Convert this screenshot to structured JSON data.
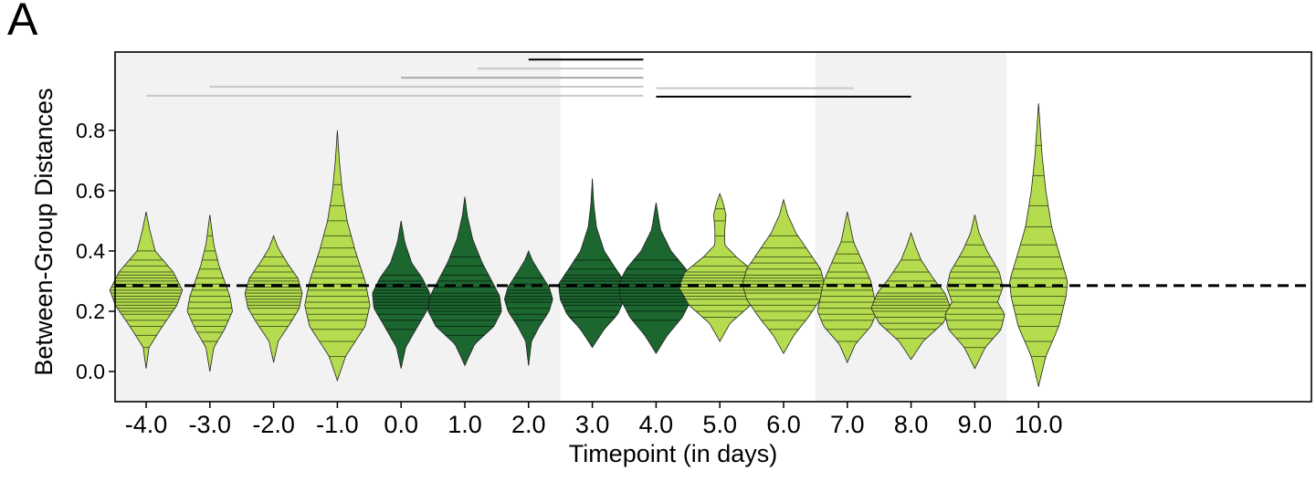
{
  "panel_label": "A",
  "chart_data": {
    "type": "violin",
    "xlabel": "Timepoint (in days)",
    "ylabel": "Between-Group Distances",
    "ylim": [
      -0.1,
      1.06
    ],
    "yticks": [
      0.0,
      0.2,
      0.4,
      0.6,
      0.8
    ],
    "ytick_labels": [
      "0.0",
      "0.2",
      "0.4",
      "0.6",
      "0.8"
    ],
    "categories": [
      "-4.0",
      "-3.0",
      "-2.0",
      "-1.0",
      "0.0",
      "1.0",
      "2.0",
      "3.0",
      "4.0",
      "5.0",
      "6.0",
      "7.0",
      "8.0",
      "9.0",
      "10.0"
    ],
    "reference_line": {
      "y": 0.285,
      "style": "dashed",
      "color": "#000000"
    },
    "shaded_bands": [
      {
        "from": "-4.0",
        "to": "2.0",
        "color": "#f2f2f2"
      },
      {
        "from": "7.0",
        "to": "9.0",
        "color": "#f2f2f2"
      }
    ],
    "colors": {
      "light": "#b5dc4f",
      "dark": "#1c6630"
    },
    "violins": [
      {
        "x": "-4.0",
        "color": "light",
        "min": 0.01,
        "max": 0.53,
        "width": 0.3,
        "profile": [
          [
            0.01,
            0.0
          ],
          [
            0.08,
            0.08
          ],
          [
            0.15,
            0.45
          ],
          [
            0.22,
            0.85
          ],
          [
            0.27,
            1.0
          ],
          [
            0.33,
            0.75
          ],
          [
            0.4,
            0.25
          ],
          [
            0.47,
            0.1
          ],
          [
            0.53,
            0.0
          ]
        ],
        "points": [
          0.08,
          0.12,
          0.15,
          0.17,
          0.19,
          0.2,
          0.21,
          0.22,
          0.23,
          0.24,
          0.25,
          0.26,
          0.27,
          0.28,
          0.29,
          0.3,
          0.31,
          0.32,
          0.33,
          0.35,
          0.37,
          0.4
        ]
      },
      {
        "x": "-3.0",
        "color": "light",
        "min": 0.0,
        "max": 0.52,
        "width": 0.22,
        "profile": [
          [
            0.0,
            0.0
          ],
          [
            0.08,
            0.15
          ],
          [
            0.14,
            0.55
          ],
          [
            0.2,
            0.85
          ],
          [
            0.25,
            0.75
          ],
          [
            0.3,
            0.55
          ],
          [
            0.35,
            0.35
          ],
          [
            0.42,
            0.15
          ],
          [
            0.52,
            0.0
          ]
        ],
        "points": [
          0.1,
          0.13,
          0.15,
          0.17,
          0.19,
          0.21,
          0.23,
          0.25,
          0.27,
          0.29,
          0.31,
          0.34,
          0.37,
          0.4,
          0.45
        ]
      },
      {
        "x": "-2.0",
        "color": "light",
        "min": 0.03,
        "max": 0.45,
        "width": 0.25,
        "profile": [
          [
            0.03,
            0.0
          ],
          [
            0.1,
            0.15
          ],
          [
            0.16,
            0.55
          ],
          [
            0.21,
            0.85
          ],
          [
            0.26,
            0.95
          ],
          [
            0.31,
            0.8
          ],
          [
            0.36,
            0.45
          ],
          [
            0.41,
            0.15
          ],
          [
            0.45,
            0.0
          ]
        ],
        "points": [
          0.15,
          0.17,
          0.19,
          0.21,
          0.22,
          0.23,
          0.24,
          0.25,
          0.26,
          0.27,
          0.28,
          0.29,
          0.3,
          0.31,
          0.33,
          0.35,
          0.38
        ]
      },
      {
        "x": "-1.0",
        "color": "light",
        "min": -0.03,
        "max": 0.8,
        "width": 0.27,
        "profile": [
          [
            -0.03,
            0.0
          ],
          [
            0.05,
            0.25
          ],
          [
            0.15,
            0.85
          ],
          [
            0.22,
            1.0
          ],
          [
            0.3,
            0.85
          ],
          [
            0.4,
            0.55
          ],
          [
            0.5,
            0.3
          ],
          [
            0.6,
            0.15
          ],
          [
            0.7,
            0.06
          ],
          [
            0.8,
            0.0
          ]
        ],
        "points": [
          0.05,
          0.1,
          0.14,
          0.17,
          0.19,
          0.21,
          0.23,
          0.25,
          0.27,
          0.29,
          0.31,
          0.33,
          0.35,
          0.38,
          0.41,
          0.45,
          0.5,
          0.55,
          0.62
        ]
      },
      {
        "x": "0.0",
        "color": "dark",
        "min": 0.01,
        "max": 0.5,
        "width": 0.25,
        "profile": [
          [
            0.01,
            0.0
          ],
          [
            0.08,
            0.15
          ],
          [
            0.15,
            0.55
          ],
          [
            0.21,
            0.9
          ],
          [
            0.26,
            0.95
          ],
          [
            0.31,
            0.7
          ],
          [
            0.36,
            0.35
          ],
          [
            0.43,
            0.12
          ],
          [
            0.5,
            0.0
          ]
        ],
        "points": [
          0.14,
          0.17,
          0.19,
          0.21,
          0.22,
          0.23,
          0.24,
          0.25,
          0.26,
          0.27,
          0.28,
          0.29,
          0.3,
          0.32
        ]
      },
      {
        "x": "1.0",
        "color": "dark",
        "min": 0.02,
        "max": 0.58,
        "width": 0.32,
        "profile": [
          [
            0.02,
            0.0
          ],
          [
            0.09,
            0.25
          ],
          [
            0.15,
            0.75
          ],
          [
            0.2,
            0.95
          ],
          [
            0.25,
            0.9
          ],
          [
            0.3,
            0.7
          ],
          [
            0.36,
            0.45
          ],
          [
            0.44,
            0.2
          ],
          [
            0.52,
            0.06
          ],
          [
            0.58,
            0.0
          ]
        ],
        "points": [
          0.12,
          0.15,
          0.17,
          0.19,
          0.2,
          0.21,
          0.22,
          0.23,
          0.24,
          0.25,
          0.26,
          0.28,
          0.3,
          0.32,
          0.35,
          0.38
        ]
      },
      {
        "x": "2.0",
        "color": "dark",
        "min": 0.02,
        "max": 0.4,
        "width": 0.2,
        "profile": [
          [
            0.02,
            0.0
          ],
          [
            0.1,
            0.12
          ],
          [
            0.15,
            0.45
          ],
          [
            0.2,
            0.85
          ],
          [
            0.24,
            1.0
          ],
          [
            0.28,
            0.85
          ],
          [
            0.33,
            0.45
          ],
          [
            0.37,
            0.15
          ],
          [
            0.4,
            0.0
          ]
        ],
        "points": [
          0.17,
          0.19,
          0.21,
          0.23,
          0.24,
          0.25,
          0.26,
          0.27,
          0.29,
          0.31
        ]
      },
      {
        "x": "3.0",
        "color": "dark",
        "min": 0.08,
        "max": 0.64,
        "width": 0.28,
        "profile": [
          [
            0.08,
            0.0
          ],
          [
            0.14,
            0.35
          ],
          [
            0.19,
            0.75
          ],
          [
            0.24,
            0.95
          ],
          [
            0.29,
            1.0
          ],
          [
            0.34,
            0.7
          ],
          [
            0.4,
            0.35
          ],
          [
            0.48,
            0.12
          ],
          [
            0.56,
            0.04
          ],
          [
            0.64,
            0.0
          ]
        ],
        "points": [
          0.18,
          0.2,
          0.22,
          0.23,
          0.24,
          0.25,
          0.26,
          0.27,
          0.28,
          0.29,
          0.3,
          0.31,
          0.32,
          0.34,
          0.37
        ]
      },
      {
        "x": "4.0",
        "color": "dark",
        "min": 0.06,
        "max": 0.56,
        "width": 0.31,
        "profile": [
          [
            0.06,
            0.0
          ],
          [
            0.12,
            0.3
          ],
          [
            0.18,
            0.7
          ],
          [
            0.24,
            0.95
          ],
          [
            0.29,
            1.0
          ],
          [
            0.34,
            0.8
          ],
          [
            0.4,
            0.4
          ],
          [
            0.47,
            0.12
          ],
          [
            0.56,
            0.0
          ]
        ],
        "points": [
          0.17,
          0.2,
          0.22,
          0.23,
          0.24,
          0.25,
          0.26,
          0.27,
          0.28,
          0.29,
          0.3,
          0.31,
          0.32,
          0.34,
          0.37
        ]
      },
      {
        "x": "5.0",
        "color": "light",
        "min": 0.1,
        "max": 0.59,
        "width": 0.34,
        "profile": [
          [
            0.1,
            0.0
          ],
          [
            0.16,
            0.25
          ],
          [
            0.22,
            0.75
          ],
          [
            0.28,
            1.0
          ],
          [
            0.33,
            0.85
          ],
          [
            0.38,
            0.4
          ],
          [
            0.42,
            0.12
          ],
          [
            0.47,
            0.12
          ],
          [
            0.52,
            0.15
          ],
          [
            0.56,
            0.08
          ],
          [
            0.59,
            0.0
          ]
        ],
        "points": [
          0.18,
          0.2,
          0.22,
          0.24,
          0.25,
          0.26,
          0.27,
          0.28,
          0.29,
          0.3,
          0.31,
          0.32,
          0.33,
          0.35,
          0.38,
          0.45,
          0.5,
          0.54
        ]
      },
      {
        "x": "6.0",
        "color": "light",
        "min": 0.06,
        "max": 0.57,
        "width": 0.34,
        "profile": [
          [
            0.06,
            0.0
          ],
          [
            0.12,
            0.25
          ],
          [
            0.18,
            0.6
          ],
          [
            0.24,
            0.9
          ],
          [
            0.29,
            1.0
          ],
          [
            0.34,
            0.9
          ],
          [
            0.4,
            0.6
          ],
          [
            0.46,
            0.3
          ],
          [
            0.52,
            0.1
          ],
          [
            0.57,
            0.0
          ]
        ],
        "points": [
          0.14,
          0.17,
          0.2,
          0.22,
          0.24,
          0.26,
          0.27,
          0.28,
          0.29,
          0.3,
          0.31,
          0.32,
          0.34,
          0.36,
          0.38,
          0.41,
          0.45
        ]
      },
      {
        "x": "7.0",
        "color": "light",
        "min": 0.03,
        "max": 0.53,
        "width": 0.26,
        "profile": [
          [
            0.03,
            0.0
          ],
          [
            0.09,
            0.25
          ],
          [
            0.15,
            0.75
          ],
          [
            0.2,
            0.95
          ],
          [
            0.25,
            0.85
          ],
          [
            0.3,
            0.75
          ],
          [
            0.36,
            0.5
          ],
          [
            0.43,
            0.2
          ],
          [
            0.53,
            0.0
          ]
        ],
        "points": [
          0.1,
          0.14,
          0.17,
          0.19,
          0.21,
          0.23,
          0.25,
          0.27,
          0.29,
          0.31,
          0.33,
          0.36,
          0.39,
          0.43
        ]
      },
      {
        "x": "8.0",
        "color": "light",
        "min": 0.04,
        "max": 0.46,
        "width": 0.33,
        "profile": [
          [
            0.04,
            0.0
          ],
          [
            0.1,
            0.3
          ],
          [
            0.16,
            0.8
          ],
          [
            0.21,
            1.0
          ],
          [
            0.26,
            0.85
          ],
          [
            0.31,
            0.55
          ],
          [
            0.37,
            0.25
          ],
          [
            0.42,
            0.1
          ],
          [
            0.46,
            0.0
          ]
        ],
        "points": [
          0.11,
          0.14,
          0.16,
          0.18,
          0.2,
          0.21,
          0.22,
          0.23,
          0.24,
          0.25,
          0.26,
          0.28,
          0.3,
          0.33,
          0.37
        ]
      },
      {
        "x": "9.0",
        "color": "light",
        "min": 0.01,
        "max": 0.52,
        "width": 0.29,
        "profile": [
          [
            0.01,
            0.0
          ],
          [
            0.08,
            0.3
          ],
          [
            0.14,
            0.75
          ],
          [
            0.19,
            0.85
          ],
          [
            0.23,
            0.65
          ],
          [
            0.28,
            0.8
          ],
          [
            0.33,
            0.7
          ],
          [
            0.4,
            0.35
          ],
          [
            0.46,
            0.12
          ],
          [
            0.52,
            0.0
          ]
        ],
        "points": [
          0.08,
          0.11,
          0.14,
          0.17,
          0.19,
          0.21,
          0.23,
          0.25,
          0.27,
          0.29,
          0.31,
          0.33,
          0.35,
          0.38,
          0.42
        ]
      },
      {
        "x": "10.0",
        "color": "light",
        "min": -0.05,
        "max": 0.89,
        "width": 0.24,
        "profile": [
          [
            -0.05,
            0.0
          ],
          [
            0.05,
            0.25
          ],
          [
            0.15,
            0.7
          ],
          [
            0.25,
            0.95
          ],
          [
            0.3,
            1.0
          ],
          [
            0.38,
            0.75
          ],
          [
            0.48,
            0.45
          ],
          [
            0.6,
            0.25
          ],
          [
            0.72,
            0.12
          ],
          [
            0.82,
            0.05
          ],
          [
            0.89,
            0.0
          ]
        ],
        "points": [
          0.05,
          0.1,
          0.15,
          0.19,
          0.22,
          0.25,
          0.28,
          0.31,
          0.34,
          0.38,
          0.42,
          0.48,
          0.55,
          0.65,
          0.75
        ]
      }
    ],
    "comparison_bars": [
      {
        "from": "2.0",
        "to": "3.8",
        "y": 1.035,
        "color": "#000000"
      },
      {
        "from": "1.2",
        "to": "3.8",
        "y": 1.005,
        "color": "#c8c8c8"
      },
      {
        "from": "0.0",
        "to": "3.8",
        "y": 0.975,
        "color": "#a8a8a8"
      },
      {
        "from": "-3.0",
        "to": "3.8",
        "y": 0.945,
        "color": "#c8c8c8"
      },
      {
        "from": "-4.0",
        "to": "3.8",
        "y": 0.915,
        "color": "#c8c8c8"
      },
      {
        "from": "4.0",
        "to": "7.1",
        "y": 0.94,
        "color": "#c8c8c8"
      },
      {
        "from": "4.0",
        "to": "8.0",
        "y": 0.912,
        "color": "#000000"
      }
    ]
  }
}
